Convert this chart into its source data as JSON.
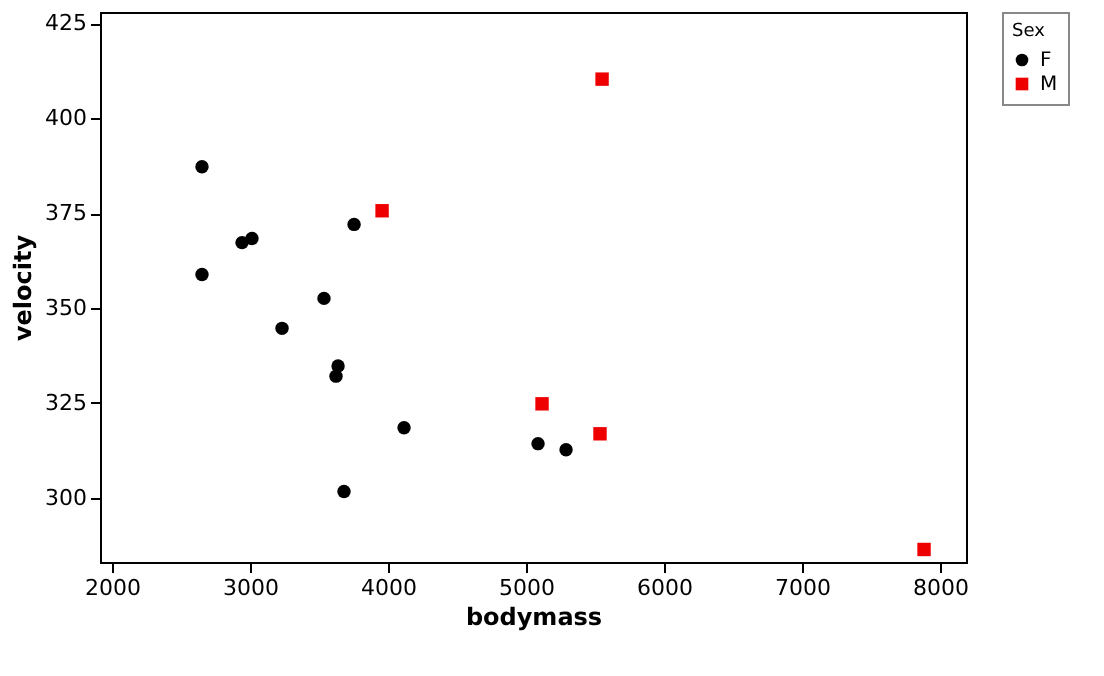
{
  "chart_data": {
    "type": "scatter",
    "xlabel": "bodymass",
    "ylabel": "velocity",
    "legend_title": "Sex",
    "legend": "top right",
    "grid": false,
    "xlim": [
      1913,
      8188
    ],
    "xticks": [
      2000,
      3000,
      4000,
      5000,
      6000,
      7000,
      8000
    ],
    "ylim": [
      283,
      428
    ],
    "yticks": [
      300,
      325,
      350,
      375,
      400,
      425
    ],
    "series": [
      {
        "name": "F",
        "color": "#000000",
        "marker": "circle",
        "x": [
          2652,
          2652,
          2942,
          3014,
          3232,
          3536,
          3638,
          3623,
          3754,
          3681,
          4116,
          5087,
          5290
        ],
        "values": [
          387.2,
          358.8,
          367.2,
          368.3,
          344.6,
          352.5,
          334.7,
          332,
          372,
          301.6,
          318.4,
          314.2,
          312.6
        ]
      },
      {
        "name": "M",
        "color": "#ee0000",
        "marker": "square",
        "x": [
          3957,
          5551,
          5116,
          5536,
          7884
        ],
        "values": [
          375.6,
          410.3,
          324.7,
          316.8,
          286.3
        ]
      }
    ]
  }
}
